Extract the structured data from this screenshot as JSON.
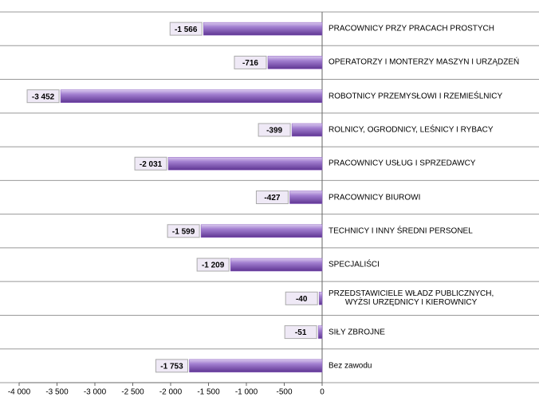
{
  "chart_data": {
    "type": "bar",
    "orientation": "horizontal",
    "categories": [
      "PRACOWNICY PRZY PRACACH PROSTYCH",
      "OPERATORZY I MONTERZY MASZYN I URZĄDZEŃ",
      "ROBOTNICY PRZEMYSŁOWI I RZEMIEŚLNICY",
      "ROLNICY, OGRODNICY, LEŚNICY I RYBACY",
      "PRACOWNICY USŁUG I SPRZEDAWCY",
      "PRACOWNICY BIUROWI",
      "TECHNICY I INNY ŚREDNI PERSONEL",
      "SPECJALIŚCI",
      "PRZEDSTAWICIELE WŁADZ PUBLICZNYCH,\nWYŻSI URZĘDNICY I KIEROWNICY",
      "SIŁY ZBROJNE",
      "Bez zawodu"
    ],
    "values": [
      -1566,
      -716,
      -3452,
      -399,
      -2031,
      -427,
      -1599,
      -1209,
      -40,
      -51,
      -1753
    ],
    "value_labels": [
      "-1 566",
      "-716",
      "-3 452",
      "-399",
      "-2 031",
      "-427",
      "-1 599",
      "-1 209",
      "-40",
      "-51",
      "-1 753"
    ],
    "color": "#8a5cc0",
    "xlim": [
      -4000,
      0
    ],
    "xticks": [
      {
        "value": -4000,
        "label": "-4 000"
      },
      {
        "value": -3500,
        "label": "-3 500"
      },
      {
        "value": -3000,
        "label": "-3 000"
      },
      {
        "value": -2500,
        "label": "-2 500"
      },
      {
        "value": -2000,
        "label": "-2 000"
      },
      {
        "value": -1500,
        "label": "-1 500"
      },
      {
        "value": -1000,
        "label": "-1 000"
      },
      -500,
      0
    ]
  }
}
